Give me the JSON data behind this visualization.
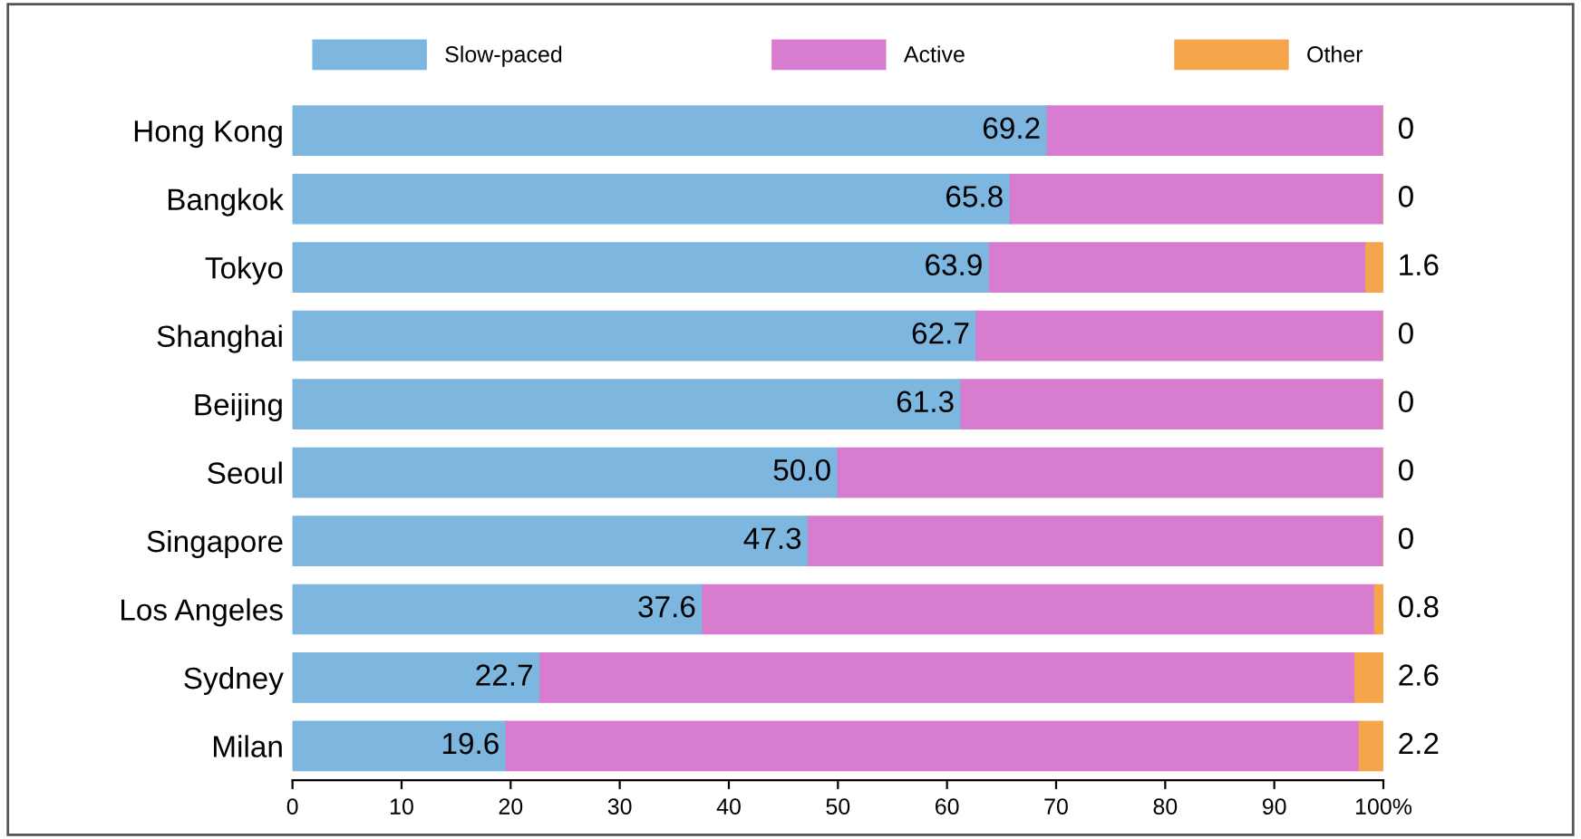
{
  "chart_data": {
    "type": "bar",
    "orientation": "horizontal",
    "stacked": true,
    "categories": [
      "Hong Kong",
      "Bangkok",
      "Tokyo",
      "Shanghai",
      "Beijing",
      "Seoul",
      "Singapore",
      "Los Angeles",
      "Sydney",
      "Milan"
    ],
    "series": [
      {
        "name": "Slow-paced",
        "color": "#7db6df",
        "values": [
          69.2,
          65.8,
          63.9,
          62.7,
          61.3,
          50.0,
          47.3,
          37.6,
          22.7,
          19.6
        ],
        "value_labels": [
          "69.2",
          "65.8",
          "63.9",
          "62.7",
          "61.3",
          "50.0",
          "47.3",
          "37.6",
          "22.7",
          "19.6"
        ]
      },
      {
        "name": "Active",
        "color": "#d77ccf",
        "values": [
          30.8,
          34.2,
          34.5,
          37.3,
          38.7,
          50.0,
          52.7,
          61.6,
          74.7,
          78.2
        ]
      },
      {
        "name": "Other",
        "color": "#f5a54a",
        "values": [
          0,
          0,
          1.6,
          0,
          0,
          0,
          0,
          0.8,
          2.6,
          2.2
        ],
        "value_labels": [
          "0",
          "0",
          "1.6",
          "0",
          "0",
          "0",
          "0",
          "0.8",
          "2.6",
          "2.2"
        ]
      }
    ],
    "xlim": [
      0,
      100
    ],
    "xticks": [
      0,
      10,
      20,
      30,
      40,
      50,
      60,
      70,
      80,
      90,
      {
        "value": 100,
        "label": "100%"
      }
    ],
    "grid": false,
    "legend": "top"
  }
}
